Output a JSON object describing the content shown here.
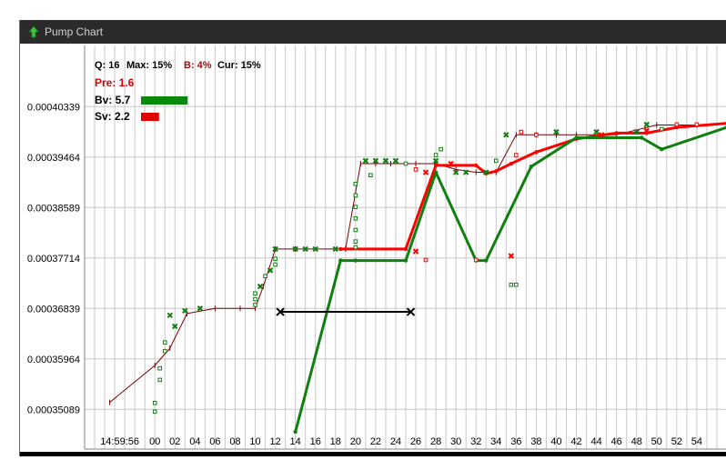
{
  "window": {
    "title": "Pump Chart",
    "icon": "green-up-arrow-icon"
  },
  "legend": {
    "stats": [
      {
        "text": "Q: 16",
        "color": "#000000"
      },
      {
        "text": "Max: 15%",
        "color": "#000000"
      },
      {
        "text": "B: 4%",
        "color": "#a01010"
      },
      {
        "text": "Cur: 15%",
        "color": "#000000"
      }
    ],
    "pre": {
      "text": "Pre: 1.6",
      "color": "#e00000"
    },
    "bv": {
      "text": "Bv: 5.7",
      "color": "#0a8a0a",
      "bar": 5.7
    },
    "sv": {
      "text": "Sv: 2.2",
      "color": "#e00000",
      "bar": 2.2
    }
  },
  "colors": {
    "green": "#0f7f0f",
    "red": "#ff0000",
    "dark_red": "#7a0000",
    "grid": "#c8c8c8",
    "black": "#000000"
  },
  "chart_data": {
    "type": "line",
    "x_axis": {
      "first_label": "14:59:56",
      "ticks": [
        "00",
        "02",
        "04",
        "06",
        "08",
        "10",
        "12",
        "14",
        "16",
        "18",
        "20",
        "22",
        "24",
        "26",
        "28",
        "30",
        "32",
        "34",
        "36",
        "38",
        "40",
        "42",
        "44",
        "46",
        "48",
        "50",
        "52",
        "54"
      ],
      "range_seconds": [
        -7,
        57
      ]
    },
    "y_axis": {
      "ticks": [
        "0.00035089",
        "0.00035964",
        "0.00036839",
        "0.00037714",
        "0.00038589",
        "0.00039464",
        "0.00040339"
      ],
      "tick_values": [
        0.00035089,
        0.00035964,
        0.00036839,
        0.00037714,
        0.00038589,
        0.00039464,
        0.00040339
      ],
      "ylim": [
        0.000344,
        0.000414
      ]
    },
    "series": [
      {
        "color": "#7a0000",
        "width": 1,
        "points": [
          [
            -4.5,
            0.0003521
          ],
          [
            0,
            0.0003585
          ],
          [
            1.5,
            0.0003615
          ],
          [
            3.2,
            0.0003675
          ],
          [
            6,
            0.0003684
          ],
          [
            8.5,
            0.0003684
          ],
          [
            10,
            0.0003684
          ],
          [
            10.8,
            0.0003722
          ],
          [
            12,
            0.0003787
          ],
          [
            14,
            0.0003787
          ],
          [
            19,
            0.0003787
          ],
          [
            20.5,
            0.0003935
          ],
          [
            22,
            0.0003935
          ],
          [
            23.5,
            0.0003935
          ],
          [
            26,
            0.0003935
          ],
          [
            28,
            0.0003935
          ],
          [
            30,
            0.0003925
          ],
          [
            32,
            0.000392
          ],
          [
            34,
            0.000392
          ],
          [
            36,
            0.0003985
          ],
          [
            38,
            0.0003985
          ],
          [
            40,
            0.0003985
          ],
          [
            42,
            0.0003985
          ],
          [
            46,
            0.0003985
          ],
          [
            50,
            0.0004002
          ],
          [
            54,
            0.0004002
          ]
        ]
      },
      {
        "color": "#ff0000",
        "width": 3,
        "points": [
          [
            18.5,
            0.0003787
          ],
          [
            25,
            0.0003787
          ],
          [
            28,
            0.0003932
          ],
          [
            32,
            0.0003932
          ],
          [
            33,
            0.0003918
          ],
          [
            34,
            0.0003922
          ],
          [
            35.5,
            0.0003935
          ],
          [
            38,
            0.0003955
          ],
          [
            42,
            0.0003978
          ],
          [
            46,
            0.0003988
          ],
          [
            49,
            0.0003988
          ],
          [
            52,
            0.0003998
          ],
          [
            57,
            0.0004005
          ]
        ]
      },
      {
        "color": "#0f7f0f",
        "width": 3,
        "points": [
          [
            14,
            0.000347
          ],
          [
            18.5,
            0.0003767
          ],
          [
            20,
            0.0003767
          ],
          [
            25,
            0.0003767
          ],
          [
            28,
            0.000392
          ],
          [
            32,
            0.0003767
          ],
          [
            33,
            0.0003767
          ],
          [
            37.5,
            0.000393
          ],
          [
            42,
            0.000398
          ],
          [
            48.5,
            0.000398
          ],
          [
            50.5,
            0.000396
          ],
          [
            57,
            0.0003998
          ]
        ]
      },
      {
        "color": "#000000",
        "width": 2,
        "points": [
          [
            12.5,
            0.0003678
          ],
          [
            25.5,
            0.0003678
          ]
        ]
      }
    ],
    "green_x_markers": [
      [
        3,
        0.000368
      ],
      [
        1.5,
        0.0003672
      ],
      [
        4.5,
        0.0003684
      ],
      [
        2,
        0.0003653
      ],
      [
        10.5,
        0.0003722
      ],
      [
        11.5,
        0.000375
      ],
      [
        12,
        0.0003787
      ],
      [
        14,
        0.0003787
      ],
      [
        15,
        0.0003787
      ],
      [
        16,
        0.0003787
      ],
      [
        18,
        0.0003787
      ],
      [
        21,
        0.000394
      ],
      [
        22,
        0.000394
      ],
      [
        23,
        0.000394
      ],
      [
        24,
        0.000394
      ],
      [
        28,
        0.000394
      ],
      [
        30,
        0.000392
      ],
      [
        31,
        0.000392
      ],
      [
        33,
        0.000392
      ],
      [
        35,
        0.0003985
      ],
      [
        40,
        0.000399
      ],
      [
        44,
        0.000399
      ],
      [
        48,
        0.000399
      ],
      [
        49,
        0.0004003
      ]
    ],
    "red_x_markers": [
      [
        27,
        0.000392
      ],
      [
        29.5,
        0.0003935
      ],
      [
        26,
        0.0003783
      ],
      [
        35.5,
        0.0003775
      ],
      [
        44.5,
        0.0003985
      ],
      [
        49,
        0.0003992
      ]
    ],
    "green_square_markers": [
      [
        0,
        0.0003505
      ],
      [
        0,
        0.000352
      ],
      [
        0.5,
        0.000356
      ],
      [
        0.5,
        0.000358
      ],
      [
        1,
        0.000361
      ],
      [
        1,
        0.0003625
      ],
      [
        10,
        0.000369
      ],
      [
        10,
        0.00037
      ],
      [
        10,
        0.000371
      ],
      [
        11,
        0.000374
      ],
      [
        12,
        0.000376
      ],
      [
        12,
        0.000377
      ],
      [
        20,
        0.00039
      ],
      [
        20,
        0.000388
      ],
      [
        20,
        0.000386
      ],
      [
        20,
        0.000384
      ],
      [
        20,
        0.000382
      ],
      [
        20,
        0.00038
      ],
      [
        20,
        0.000379
      ],
      [
        21.5,
        0.0003915
      ],
      [
        25,
        0.0003935
      ],
      [
        28,
        0.000395
      ],
      [
        28.5,
        0.000396
      ],
      [
        34,
        0.000394
      ],
      [
        35.5,
        0.0003725
      ],
      [
        36,
        0.0003725
      ],
      [
        50.5,
        0.0003995
      ]
    ],
    "red_square_markers": [
      [
        26,
        0.0003925
      ],
      [
        27,
        0.0003768
      ],
      [
        32,
        0.0003768
      ],
      [
        36,
        0.000395
      ],
      [
        36.5,
        0.000399
      ],
      [
        38,
        0.0003985
      ],
      [
        52,
        0.0004003
      ],
      [
        54,
        0.0004003
      ]
    ]
  }
}
